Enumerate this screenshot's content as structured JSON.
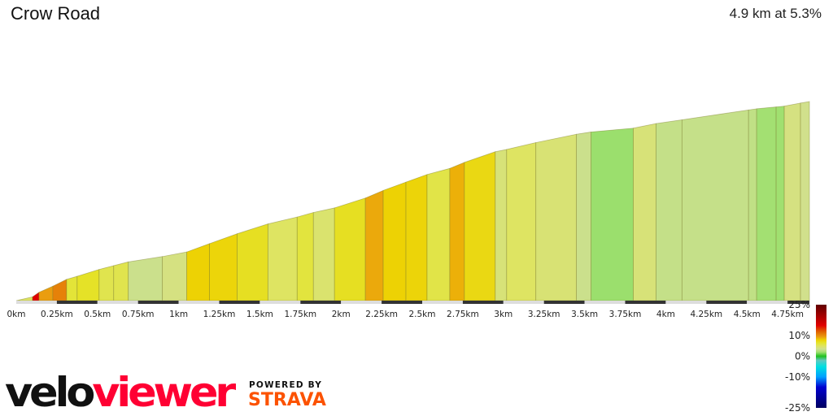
{
  "header": {
    "title": "Crow Road",
    "summary": "4.9 km at 5.3%"
  },
  "chart_data": {
    "type": "area",
    "title": "Crow Road",
    "xlabel": "",
    "ylabel": "",
    "x_unit": "km",
    "xlim": [
      0,
      4.9
    ],
    "x_ticks": [
      "0km",
      "0.25km",
      "0.5km",
      "0.75km",
      "1km",
      "1.25km",
      "1.5km",
      "1.75km",
      "2km",
      "2.25km",
      "2.5km",
      "2.75km",
      "3km",
      "3.25km",
      "3.5km",
      "3.75km",
      "4km",
      "4.25km",
      "4.5km",
      "4.75km"
    ],
    "profile": [
      [
        0,
        0
      ],
      [
        0.1,
        5
      ],
      [
        0.14,
        11
      ],
      [
        0.225,
        19
      ],
      [
        0.31,
        28
      ],
      [
        0.375,
        32
      ],
      [
        0.51,
        41
      ],
      [
        0.6,
        46
      ],
      [
        0.69,
        51
      ],
      [
        0.9,
        58
      ],
      [
        1.05,
        64
      ],
      [
        1.19,
        75
      ],
      [
        1.36,
        88
      ],
      [
        1.55,
        101
      ],
      [
        1.73,
        110
      ],
      [
        1.83,
        116
      ],
      [
        1.96,
        122
      ],
      [
        2.15,
        135
      ],
      [
        2.26,
        145
      ],
      [
        2.4,
        156
      ],
      [
        2.53,
        166
      ],
      [
        2.67,
        174
      ],
      [
        2.76,
        182
      ],
      [
        2.95,
        196
      ],
      [
        3.02,
        199
      ],
      [
        3.2,
        208
      ],
      [
        3.45,
        219
      ],
      [
        3.54,
        222
      ],
      [
        3.8,
        227
      ],
      [
        3.94,
        233
      ],
      [
        4.1,
        238
      ],
      [
        4.51,
        251
      ],
      [
        4.56,
        252.5
      ],
      [
        4.68,
        255
      ],
      [
        4.73,
        256
      ],
      [
        4.83,
        260
      ],
      [
        4.885,
        262
      ]
    ],
    "gradient_legend": {
      "labels": [
        "25%",
        "10%",
        "0%",
        "-10%",
        "-25%"
      ],
      "label_values": [
        25,
        10,
        0,
        -10,
        -25
      ],
      "range": [
        -25,
        25
      ],
      "stops": [
        [
          -25,
          "#000060"
        ],
        [
          -15,
          "#0000d0"
        ],
        [
          -10,
          "#00a0ff"
        ],
        [
          -5,
          "#00e0e0"
        ],
        [
          -2,
          "#60c8c0"
        ],
        [
          0,
          "#20c020"
        ],
        [
          2,
          "#a0e070"
        ],
        [
          3.5,
          "#d0e090"
        ],
        [
          5,
          "#dee462"
        ],
        [
          6.5,
          "#e4e42c"
        ],
        [
          8,
          "#eed000"
        ],
        [
          9.5,
          "#ea9a10"
        ],
        [
          12,
          "#e06000"
        ],
        [
          15,
          "#e00000"
        ],
        [
          25,
          "#600000"
        ]
      ]
    }
  },
  "branding": {
    "logo_text_a": "velo",
    "logo_text_b": "viewer",
    "powered_by": "POWERED BY",
    "strava": "STRAVA"
  },
  "colors": {
    "logo_black": "#111111",
    "logo_red": "#ff0033",
    "strava_orange": "#fc5200"
  }
}
